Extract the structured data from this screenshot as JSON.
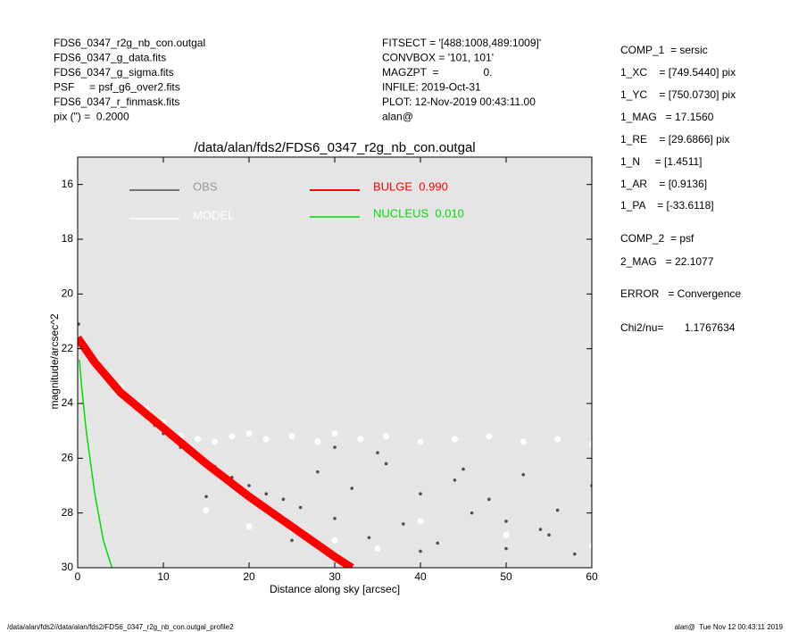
{
  "chart_data": {
    "type": "scatter",
    "title": "/data/alan/fds2/FDS6_0347_r2g_nb_con.outgal",
    "x_label": "Distance along sky [arcsec]",
    "y_label": "magnitude/arcsec^2",
    "xlim": [
      0,
      60
    ],
    "xticks": [
      0,
      10,
      20,
      30,
      40,
      50,
      60
    ],
    "ylim": [
      15,
      30
    ],
    "y_inverted": true,
    "yticks": [
      16,
      18,
      20,
      22,
      24,
      26,
      28,
      30
    ],
    "plot_background": "#e5e5e5",
    "series": [
      {
        "name": "OBS",
        "color": "#505050",
        "style": "points",
        "x": [
          0.1,
          0.5,
          1,
          2,
          3,
          4,
          5,
          6,
          7,
          8,
          9,
          10,
          12,
          14,
          16,
          18,
          20,
          22,
          24,
          26,
          28,
          30,
          32,
          34,
          36,
          38,
          40,
          42,
          44,
          46,
          48,
          50,
          52,
          54,
          56,
          58,
          60,
          25,
          35,
          45,
          55,
          15,
          30,
          40,
          50
        ],
        "values": [
          21.1,
          21.8,
          22.1,
          22.5,
          22.9,
          23.3,
          23.6,
          23.9,
          24.2,
          24.5,
          24.8,
          25.1,
          25.6,
          26.0,
          26.3,
          26.7,
          27.0,
          27.3,
          27.5,
          27.8,
          26.5,
          28.2,
          27.1,
          28.9,
          26.2,
          28.4,
          27.3,
          29.1,
          26.8,
          28.0,
          27.5,
          29.3,
          26.6,
          28.6,
          27.9,
          29.5,
          27.0,
          29.0,
          25.8,
          26.4,
          28.8,
          27.4,
          25.6,
          29.4,
          28.3
        ]
      },
      {
        "name": "MODEL",
        "color": "#ffffff",
        "style": "points",
        "x": [
          1,
          3,
          5,
          8,
          10,
          12,
          14,
          16,
          18,
          20,
          22,
          25,
          28,
          30,
          33,
          36,
          40,
          44,
          48,
          52,
          56,
          60,
          20,
          30,
          40,
          50,
          60,
          15,
          25,
          35
        ],
        "values": [
          22.0,
          22.8,
          23.4,
          24.2,
          24.7,
          25.2,
          25.3,
          25.4,
          25.2,
          25.1,
          25.3,
          25.2,
          25.4,
          25.1,
          25.3,
          25.2,
          25.4,
          25.3,
          25.2,
          25.4,
          25.3,
          25.5,
          28.5,
          29.0,
          28.3,
          28.8,
          29.2,
          27.9,
          28.6,
          29.3
        ]
      },
      {
        "name": "BULGE  0.990",
        "color": "#ff0000",
        "style": "band",
        "x": [
          0,
          2,
          5,
          10,
          15,
          20,
          25,
          30,
          32
        ],
        "values": [
          21.6,
          22.5,
          23.6,
          24.9,
          26.2,
          27.4,
          28.5,
          29.6,
          30.0
        ]
      },
      {
        "name": "NUCLEUS  0.010",
        "color": "#00dd00",
        "style": "line",
        "x": [
          0.2,
          0.5,
          1,
          2,
          3,
          4
        ],
        "values": [
          22.4,
          23.5,
          25.0,
          27.3,
          29.0,
          30.0
        ]
      }
    ],
    "info_left": [
      "FDS6_0347_r2g_nb_con.outgal",
      "FDS6_0347_g_data.fits",
      "FDS6_0347_g_sigma.fits",
      "PSF     = psf_g6_over2.fits",
      "FDS6_0347_r_finmask.fits",
      "pix (\") =  0.2000"
    ],
    "info_middle": [
      "FITSECT = '[488:1008,489:1009]'",
      "CONVBOX = '101, 101'",
      "MAGZPT  =               0.",
      "INFILE: 2019-Oct-31",
      "PLOT: 12-Nov-2019 00:43:11.00",
      "alan@"
    ],
    "info_right": [
      "COMP_1  = sersic",
      "1_XC    = [749.5440] pix",
      "1_YC    = [750.0730] pix",
      "1_MAG   = 17.1560",
      "1_RE    = [29.6866] pix",
      "1_N     = [1.4511]",
      "1_AR    = [0.9136]",
      "1_PA    = [-33.6118]",
      "COMP_2  = psf",
      "2_MAG   = 22.1077",
      "ERROR   = Convergence",
      "Chi2/nu=       1.1767634"
    ],
    "footer_left": "/data/alan/fds2//data/alan/fds2/FDS6_0347_r2g_nb_con.outgal_profile2",
    "footer_right": "alan@  Tue Nov 12 00:43:11 2019"
  }
}
